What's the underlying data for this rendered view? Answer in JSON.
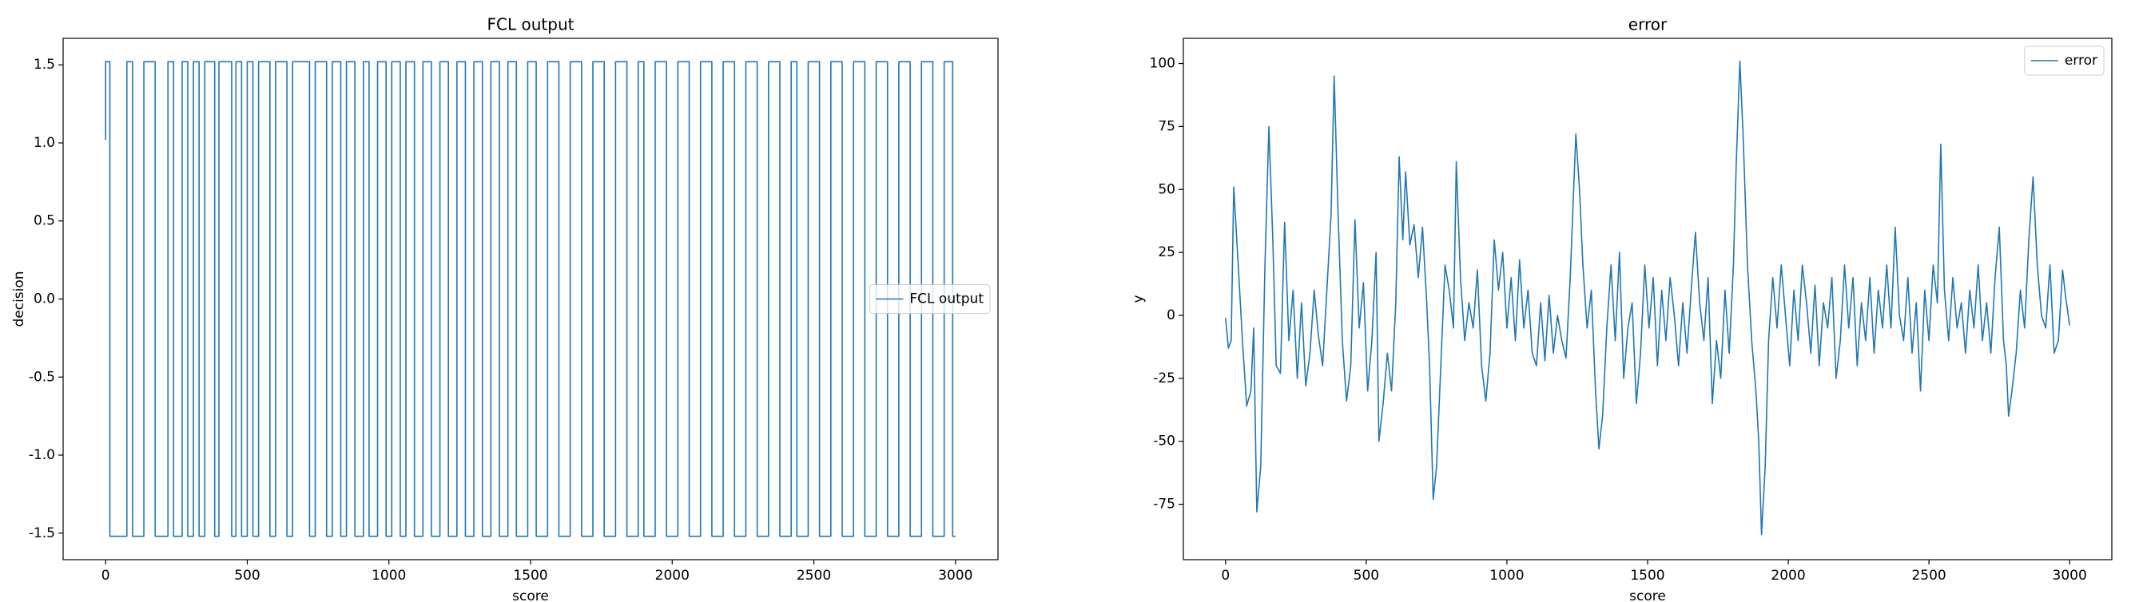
{
  "chart_data": [
    {
      "type": "line",
      "title": "FCL output",
      "xlabel": "score",
      "ylabel": "decision",
      "legend": "center right",
      "xlim": [
        -150,
        3150
      ],
      "ylim": [
        -1.67,
        1.67
      ],
      "xticks": [
        0,
        500,
        1000,
        1500,
        2000,
        2500,
        3000
      ],
      "yticks": [
        -1.5,
        {
          "value": -1,
          "label": "-1.0"
        },
        -0.5,
        {
          "value": 0,
          "label": "0.0"
        },
        0.5,
        {
          "value": 1,
          "label": "1.0"
        },
        1.5
      ],
      "series": [
        {
          "name": "FCL output",
          "color": "#1f77b4",
          "x": [
            0,
            0,
            15,
            15,
            75,
            75,
            95,
            95,
            135,
            135,
            175,
            175,
            220,
            220,
            240,
            240,
            270,
            270,
            290,
            290,
            310,
            310,
            330,
            330,
            350,
            350,
            385,
            385,
            400,
            400,
            445,
            445,
            460,
            460,
            480,
            480,
            500,
            500,
            520,
            520,
            540,
            540,
            580,
            580,
            600,
            600,
            640,
            640,
            660,
            660,
            720,
            720,
            740,
            740,
            780,
            780,
            800,
            800,
            830,
            830,
            850,
            850,
            880,
            880,
            910,
            910,
            930,
            930,
            960,
            960,
            990,
            990,
            1010,
            1010,
            1040,
            1040,
            1060,
            1060,
            1090,
            1090,
            1120,
            1120,
            1150,
            1150,
            1180,
            1180,
            1210,
            1210,
            1240,
            1240,
            1270,
            1270,
            1300,
            1300,
            1330,
            1330,
            1360,
            1360,
            1390,
            1390,
            1420,
            1420,
            1450,
            1450,
            1490,
            1490,
            1520,
            1520,
            1560,
            1560,
            1600,
            1600,
            1640,
            1640,
            1680,
            1680,
            1720,
            1720,
            1760,
            1760,
            1800,
            1800,
            1840,
            1840,
            1880,
            1880,
            1900,
            1900,
            1940,
            1940,
            1980,
            1980,
            2020,
            2020,
            2060,
            2060,
            2100,
            2100,
            2140,
            2140,
            2180,
            2180,
            2220,
            2220,
            2260,
            2260,
            2300,
            2300,
            2340,
            2340,
            2380,
            2380,
            2420,
            2420,
            2440,
            2440,
            2480,
            2480,
            2520,
            2520,
            2560,
            2560,
            2600,
            2600,
            2640,
            2640,
            2680,
            2680,
            2720,
            2720,
            2760,
            2760,
            2800,
            2800,
            2840,
            2840,
            2880,
            2880,
            2920,
            2920,
            2960,
            2960,
            2990,
            2990,
            3000
          ],
          "values": [
            1.02,
            1.52,
            1.52,
            -1.52,
            -1.52,
            1.52,
            1.52,
            -1.52,
            -1.52,
            1.52,
            1.52,
            -1.52,
            -1.52,
            1.52,
            1.52,
            -1.52,
            -1.52,
            1.52,
            1.52,
            -1.52,
            -1.52,
            1.52,
            1.52,
            -1.52,
            -1.52,
            1.52,
            1.52,
            -1.52,
            -1.52,
            1.52,
            1.52,
            -1.52,
            -1.52,
            1.52,
            1.52,
            -1.52,
            -1.52,
            1.52,
            1.52,
            -1.52,
            -1.52,
            1.52,
            1.52,
            -1.52,
            -1.52,
            1.52,
            1.52,
            -1.52,
            -1.52,
            1.52,
            1.52,
            -1.52,
            -1.52,
            1.52,
            1.52,
            -1.52,
            -1.52,
            1.52,
            1.52,
            -1.52,
            -1.52,
            1.52,
            1.52,
            -1.52,
            -1.52,
            1.52,
            1.52,
            -1.52,
            -1.52,
            1.52,
            1.52,
            -1.52,
            -1.52,
            1.52,
            1.52,
            -1.52,
            -1.52,
            1.52,
            1.52,
            -1.52,
            -1.52,
            1.52,
            1.52,
            -1.52,
            -1.52,
            1.52,
            1.52,
            -1.52,
            -1.52,
            1.52,
            1.52,
            -1.52,
            -1.52,
            1.52,
            1.52,
            -1.52,
            -1.52,
            1.52,
            1.52,
            -1.52,
            -1.52,
            1.52,
            1.52,
            -1.52,
            -1.52,
            1.52,
            1.52,
            -1.52,
            -1.52,
            1.52,
            1.52,
            -1.52,
            -1.52,
            1.52,
            1.52,
            -1.52,
            -1.52,
            1.52,
            1.52,
            -1.52,
            -1.52,
            1.52,
            1.52,
            -1.52,
            -1.52,
            1.52,
            1.52,
            -1.52,
            -1.52,
            1.52,
            1.52,
            -1.52,
            -1.52,
            1.52,
            1.52,
            -1.52,
            -1.52,
            1.52,
            1.52,
            -1.52,
            -1.52,
            1.52,
            1.52,
            -1.52,
            -1.52,
            1.52,
            1.52,
            -1.52,
            -1.52,
            1.52,
            1.52,
            -1.52,
            -1.52,
            1.52,
            1.52,
            -1.52,
            -1.52,
            1.52,
            1.52,
            -1.52,
            -1.52,
            1.52,
            1.52,
            -1.52,
            -1.52,
            1.52,
            1.52,
            -1.52,
            -1.52,
            1.52,
            1.52,
            -1.52,
            -1.52,
            1.52,
            1.52,
            -1.52,
            -1.52,
            1.52,
            1.52,
            -1.52,
            -1.52,
            1.52,
            1.52,
            -1.52,
            -1.52
          ]
        }
      ]
    },
    {
      "type": "line",
      "title": "error",
      "xlabel": "score",
      "ylabel": "y",
      "legend": "upper right",
      "xlim": [
        -150,
        3150
      ],
      "ylim": [
        -97,
        110
      ],
      "xticks": [
        0,
        500,
        1000,
        1500,
        2000,
        2500,
        3000
      ],
      "yticks": [
        -75,
        -50,
        -25,
        0,
        25,
        50,
        75,
        100
      ],
      "series": [
        {
          "name": "error",
          "color": "#1f77b4",
          "x": [
            0,
            10,
            20,
            29,
            45,
            60,
            75,
            90,
            100,
            111,
            125,
            140,
            154,
            168,
            180,
            195,
            210,
            225,
            240,
            255,
            270,
            285,
            300,
            315,
            330,
            345,
            360,
            375,
            386,
            400,
            415,
            430,
            445,
            460,
            475,
            490,
            505,
            520,
            535,
            545,
            560,
            575,
            590,
            605,
            617,
            630,
            640,
            655,
            670,
            685,
            700,
            715,
            725,
            738,
            750,
            765,
            780,
            795,
            810,
            820,
            835,
            850,
            865,
            880,
            895,
            910,
            925,
            940,
            955,
            970,
            985,
            1000,
            1015,
            1030,
            1045,
            1060,
            1075,
            1090,
            1105,
            1120,
            1135,
            1150,
            1165,
            1180,
            1195,
            1210,
            1225,
            1245,
            1258,
            1270,
            1285,
            1300,
            1315,
            1327,
            1340,
            1355,
            1370,
            1385,
            1400,
            1415,
            1430,
            1445,
            1460,
            1475,
            1490,
            1505,
            1520,
            1535,
            1550,
            1565,
            1580,
            1595,
            1610,
            1625,
            1640,
            1655,
            1670,
            1685,
            1700,
            1715,
            1730,
            1745,
            1760,
            1775,
            1790,
            1805,
            1815,
            1828,
            1840,
            1855,
            1870,
            1885,
            1895,
            1905,
            1918,
            1930,
            1945,
            1960,
            1975,
            1990,
            2005,
            2020,
            2035,
            2050,
            2065,
            2080,
            2095,
            2110,
            2125,
            2140,
            2155,
            2170,
            2185,
            2200,
            2215,
            2230,
            2245,
            2260,
            2275,
            2290,
            2305,
            2320,
            2335,
            2350,
            2365,
            2380,
            2395,
            2410,
            2425,
            2440,
            2455,
            2470,
            2485,
            2500,
            2515,
            2530,
            2542,
            2555,
            2570,
            2585,
            2600,
            2615,
            2630,
            2645,
            2660,
            2675,
            2690,
            2705,
            2720,
            2735,
            2750,
            2765,
            2775,
            2783,
            2795,
            2810,
            2825,
            2840,
            2855,
            2870,
            2885,
            2900,
            2915,
            2930,
            2945,
            2960,
            2975,
            2985,
            3000
          ],
          "values": [
            -1,
            -13,
            -10,
            51,
            20,
            -10,
            -36,
            -30,
            -5,
            -78,
            -60,
            20,
            75,
            30,
            -20,
            -23,
            37,
            -10,
            10,
            -25,
            5,
            -28,
            -15,
            10,
            -8,
            -20,
            10,
            40,
            95,
            40,
            -10,
            -34,
            -20,
            38,
            -5,
            13,
            -30,
            -10,
            25,
            -50,
            -35,
            -15,
            -30,
            5,
            63,
            30,
            57,
            28,
            36,
            15,
            35,
            5,
            -20,
            -73,
            -60,
            -20,
            20,
            10,
            -5,
            61,
            15,
            -10,
            5,
            -5,
            18,
            -20,
            -34,
            -15,
            30,
            10,
            25,
            -5,
            15,
            -10,
            22,
            -5,
            10,
            -15,
            -20,
            5,
            -18,
            8,
            -15,
            0,
            -10,
            -17,
            15,
            72,
            50,
            20,
            -5,
            10,
            -30,
            -53,
            -40,
            -5,
            20,
            -10,
            25,
            -25,
            -5,
            5,
            -35,
            -15,
            20,
            -5,
            15,
            -20,
            10,
            -10,
            15,
            0,
            -20,
            5,
            -15,
            10,
            33,
            5,
            -10,
            15,
            -35,
            -10,
            -25,
            10,
            -15,
            20,
            60,
            101,
            70,
            20,
            -10,
            -30,
            -50,
            -87,
            -60,
            -10,
            15,
            -5,
            20,
            0,
            -20,
            10,
            -10,
            20,
            5,
            -15,
            12,
            -20,
            5,
            -5,
            15,
            -25,
            -10,
            20,
            -5,
            15,
            -20,
            5,
            -10,
            15,
            -15,
            10,
            -5,
            20,
            -5,
            35,
            0,
            -10,
            15,
            -15,
            5,
            -30,
            10,
            -10,
            20,
            5,
            68,
            10,
            -10,
            15,
            -5,
            5,
            -15,
            10,
            -5,
            20,
            -10,
            5,
            -15,
            15,
            35,
            -10,
            -20,
            -40,
            -30,
            -15,
            10,
            -5,
            30,
            55,
            20,
            0,
            -5,
            20,
            -15,
            -10,
            18,
            8,
            -4
          ]
        }
      ]
    }
  ]
}
